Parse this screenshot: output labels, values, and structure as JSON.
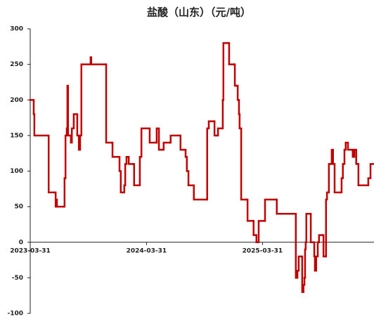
{
  "chart_data": {
    "type": "line",
    "title": "盐酸（山东）（元/吨）",
    "step": "post",
    "x": [
      "2023-03-31",
      "2023-04-09",
      "2023-04-11",
      "2023-04-13",
      "2023-05-25",
      "2023-05-28",
      "2023-06-16",
      "2023-06-19",
      "2023-06-21",
      "2023-06-23",
      "2023-07-15",
      "2023-07-17",
      "2023-07-20",
      "2023-07-24",
      "2023-07-26",
      "2023-07-28",
      "2023-08-02",
      "2023-08-06",
      "2023-08-09",
      "2023-08-15",
      "2023-08-26",
      "2023-08-31",
      "2023-09-04",
      "2023-09-08",
      "2023-10-05",
      "2023-10-07",
      "2023-10-09",
      "2023-11-23",
      "2023-11-25",
      "2023-12-13",
      "2023-12-15",
      "2024-01-04",
      "2024-01-06",
      "2024-01-10",
      "2024-01-17",
      "2024-01-21",
      "2024-01-24",
      "2024-01-28",
      "2024-02-04",
      "2024-02-17",
      "2024-02-21",
      "2024-03-08",
      "2024-03-10",
      "2024-03-15",
      "2024-04-08",
      "2024-04-10",
      "2024-04-30",
      "2024-05-02",
      "2024-05-09",
      "2024-05-20",
      "2024-05-24",
      "2024-06-13",
      "2024-06-15",
      "2024-07-14",
      "2024-07-16",
      "2024-07-30",
      "2024-08-01",
      "2024-08-05",
      "2024-08-10",
      "2024-08-25",
      "2024-08-27",
      "2024-10-06",
      "2024-10-08",
      "2024-10-13",
      "2024-10-28",
      "2024-10-31",
      "2024-11-08",
      "2024-11-11",
      "2024-11-24",
      "2024-11-26",
      "2024-11-28",
      "2024-12-14",
      "2024-12-16",
      "2024-12-31",
      "2025-01-03",
      "2025-01-09",
      "2025-01-12",
      "2025-01-16",
      "2025-01-18",
      "2025-01-23",
      "2025-02-07",
      "2025-02-12",
      "2025-03-01",
      "2025-03-03",
      "2025-03-10",
      "2025-03-12",
      "2025-03-19",
      "2025-04-06",
      "2025-04-08",
      "2025-05-13",
      "2025-05-15",
      "2025-07-12",
      "2025-07-14",
      "2025-07-19",
      "2025-07-23",
      "2025-08-01",
      "2025-08-03",
      "2025-08-07",
      "2025-08-10",
      "2025-08-12",
      "2025-08-14",
      "2025-08-16",
      "2025-08-27",
      "2025-08-30",
      "2025-09-05",
      "2025-09-10",
      "2025-09-12",
      "2025-09-16",
      "2025-09-21",
      "2025-09-25",
      "2025-10-06",
      "2025-10-09",
      "2025-10-15",
      "2025-10-17",
      "2025-10-20",
      "2025-10-24",
      "2025-10-26",
      "2025-10-31",
      "2025-11-04",
      "2025-11-08",
      "2025-11-13",
      "2025-12-01",
      "2025-12-05",
      "2025-12-09",
      "2025-12-14",
      "2025-12-18",
      "2025-12-25",
      "2026-01-07",
      "2026-01-09",
      "2026-01-14",
      "2026-01-18",
      "2026-01-20",
      "2026-01-25",
      "2026-01-27",
      "2026-02-23",
      "2026-02-27",
      "2026-03-06"
    ],
    "series": [
      {
        "color": "#c00000",
        "values": [
          200,
          200,
          180,
          150,
          150,
          70,
          70,
          50,
          60,
          50,
          50,
          90,
          150,
          160,
          220,
          150,
          150,
          140,
          160,
          180,
          150,
          130,
          150,
          250,
          250,
          260,
          250,
          250,
          140,
          140,
          120,
          120,
          100,
          70,
          70,
          80,
          110,
          120,
          110,
          110,
          80,
          80,
          120,
          160,
          160,
          140,
          140,
          160,
          130,
          130,
          140,
          140,
          150,
          150,
          130,
          130,
          120,
          100,
          80,
          80,
          60,
          60,
          160,
          170,
          170,
          150,
          150,
          160,
          160,
          200,
          280,
          280,
          250,
          250,
          220,
          220,
          200,
          180,
          160,
          60,
          60,
          30,
          30,
          10,
          10,
          0,
          30,
          30,
          60,
          60,
          40,
          40,
          -50,
          -40,
          -20,
          -20,
          -70,
          -60,
          -50,
          -10,
          0,
          40,
          40,
          0,
          0,
          -20,
          -40,
          -20,
          0,
          10,
          10,
          -20,
          -20,
          60,
          70,
          70,
          110,
          110,
          130,
          110,
          70,
          70,
          90,
          110,
          130,
          140,
          130,
          130,
          120,
          130,
          130,
          110,
          110,
          80,
          80,
          90,
          110
        ]
      }
    ],
    "xlim": [
      "2023-03-31",
      "2026-03-17"
    ],
    "xticks": [
      "2023-03-31",
      "2024-03-31",
      "2025-03-31"
    ],
    "ylim": [
      -100,
      300
    ],
    "yticks": [
      -100,
      -50,
      0,
      50,
      100,
      150,
      200,
      250,
      300
    ]
  }
}
